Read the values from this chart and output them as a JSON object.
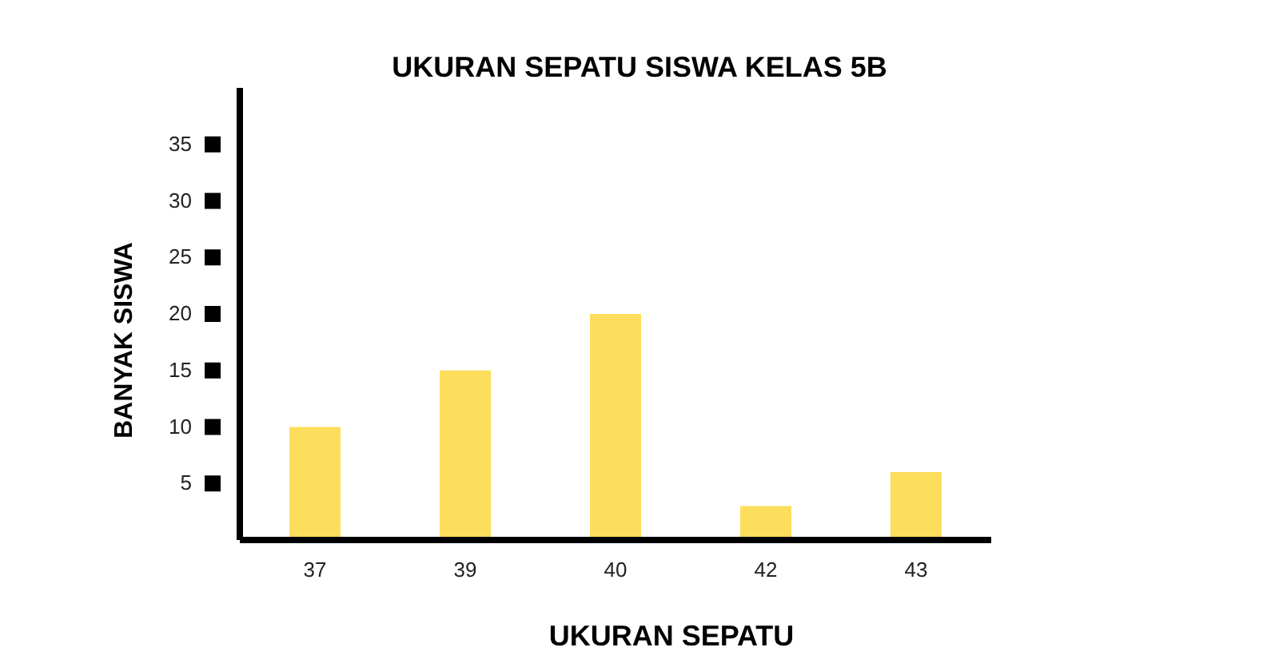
{
  "chart_data": {
    "type": "bar",
    "title": "UKURAN SEPATU SISWA KELAS 5B",
    "xlabel": "UKURAN SEPATU",
    "ylabel": "BANYAK SISWA",
    "categories": [
      "37",
      "39",
      "40",
      "42",
      "43"
    ],
    "values": [
      10,
      15,
      20,
      3,
      6
    ],
    "color": "#fddd5c",
    "ylim": [
      0,
      40
    ],
    "yticks": [
      5,
      10,
      15,
      20,
      25,
      30,
      35
    ],
    "grid": false
  }
}
